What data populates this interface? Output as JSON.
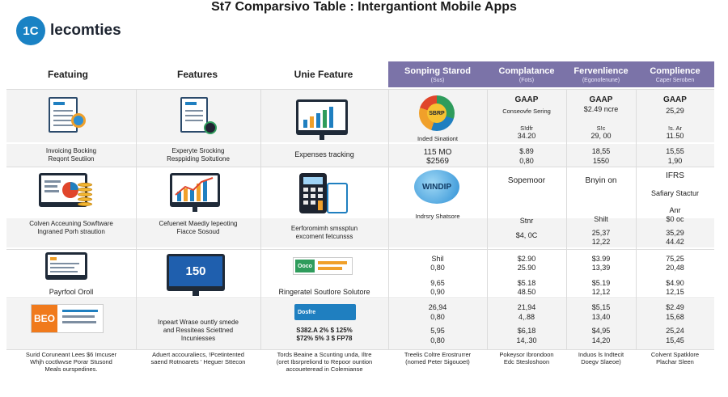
{
  "title": "St7 Comparsivo Table : Intergantiont Mobile Apps",
  "logo": {
    "mark": "1C",
    "text": "lecomties"
  },
  "headers": {
    "col1": "Featuing",
    "col2": "Features",
    "col3": "Unie Feature",
    "col4": {
      "main": "Sonping Starod",
      "sub": "(Sus)"
    },
    "col5": {
      "main": "Complatance",
      "sub": "(Fots)"
    },
    "col6": {
      "main": "Fervenlience",
      "sub": "(Egonofenune)"
    },
    "col7": {
      "main": "Complience",
      "sub": "Caper Seroben"
    }
  },
  "rows": {
    "r1": {
      "c1": "Invoicing Bocking\nReqont Seutiion",
      "c2": "Experyte Srocking\nResppiding Soitutione",
      "c3": "Expenses tracking",
      "c4_badge": "SBRP",
      "c4_label": "Inded Sinationt",
      "c4_v1": "115 MO",
      "c4_v2": "$2569",
      "c5": {
        "head": "GAAP",
        "sub": "Conseovfe Sering",
        "a": "S!dfr",
        "b": "34.20",
        "c": "$.89",
        "d": "0,80"
      },
      "c6": {
        "head": "GAAP",
        "sub": "$2.49 ncre",
        "a": "S!c",
        "b": "29, 00",
        "c": "18,55",
        "d": "1550"
      },
      "c7": {
        "head": "GAAP",
        "sub": "25,29",
        "a": "!s. Ar",
        "b": "11.50",
        "c": "15,55",
        "d": "1,90"
      }
    },
    "r2": {
      "c1": "Colven Acceuning Sowftware\nIngraned Porh straution",
      "c2": "Cefueneit Maediy lepeoting\nFiacce Sosoud",
      "c3": "Eerforomimh smssptun\nexcoment fetcunsss",
      "c4_badge": "WINDIP",
      "c4_label": "Indrsry Shatsore",
      "c5": {
        "head": "Sopemoor",
        "a": "Stnr",
        "b": "$4, 0C"
      },
      "c6": {
        "head": "Bnyin on",
        "a": "Shilt",
        "b": "25,37",
        "c": "12,22"
      },
      "c7": {
        "head": "IFRS",
        "sub": "Safiary Stactur",
        "a": "Anr",
        "b": "$0 oc",
        "c": "35,29",
        "d": "44.42"
      }
    },
    "r3": {
      "c1": "Payrfool Oroll",
      "c2_screen": "150",
      "c3": "Ringeratel Soutlore Solutore",
      "c3_badge": "Ooco",
      "c4": {
        "a": "Shil",
        "b": "0,80",
        "c": "9,65",
        "d": "0,90"
      },
      "c5": {
        "a": "$2.90",
        "b": "25.90",
        "c": "$5.18",
        "d": "48.50"
      },
      "c6": {
        "a": "$3.99",
        "b": "13,39",
        "c": "$5.19",
        "d": "12,12"
      },
      "c7": {
        "a": "75,25",
        "b": "20,48",
        "c": "$4.90",
        "d": "12,15"
      }
    },
    "r4": {
      "c1_badge": "BEO",
      "c2": "Inpeart Wrase ountly smede\nand Ressiteas Sciettned\nIncuniesses",
      "c3_badge": "Dosfre",
      "c3_nums": "S382.A 2% $ 125%\n$72% 5% 3 $ FP78",
      "c4": {
        "a": "26,94",
        "b": "0,80",
        "c": "5,95",
        "d": "0,80"
      },
      "c5": {
        "a": "21,94",
        "b": "4,.88",
        "c": "$6,18",
        "d": "14,.30"
      },
      "c6": {
        "a": "$5,15",
        "b": "13,40",
        "c": "$4,95",
        "d": "14,20"
      },
      "c7": {
        "a": "$2.49",
        "b": "15,68",
        "c": "25,24",
        "d": "15,45"
      }
    }
  },
  "footer": {
    "c1": "Surid Coruneant Lees $6 Imcuser\nWhjh coctlwvse Porar Stusond\nMeals ourspedines.",
    "c2": "Aduert accouraliecs, !Pcetintented\nsaend Rotnoarets ' Heguer Sttecon",
    "c3": "Tords Beaine a Scunting unda, Iltre\n(oret Ibsrpreliond to Repoor ountion\naccoueteread in Colemianse",
    "c4": "Treelis Coltre Erostrurrer\n(nomed Peter Sigouoet)",
    "c5": "Pokeysor Ibrondoon\nEdc Stesloshoon",
    "c6": "Induos ls Indtecit\nDoegv Slaeoe)",
    "c7": "Colvent Spatklore\nPlachar Sleen"
  },
  "colors": {
    "header_purple": "#7b73a8",
    "logo_blue": "#1a82c4",
    "band_gray": "#f3f3f3"
  }
}
